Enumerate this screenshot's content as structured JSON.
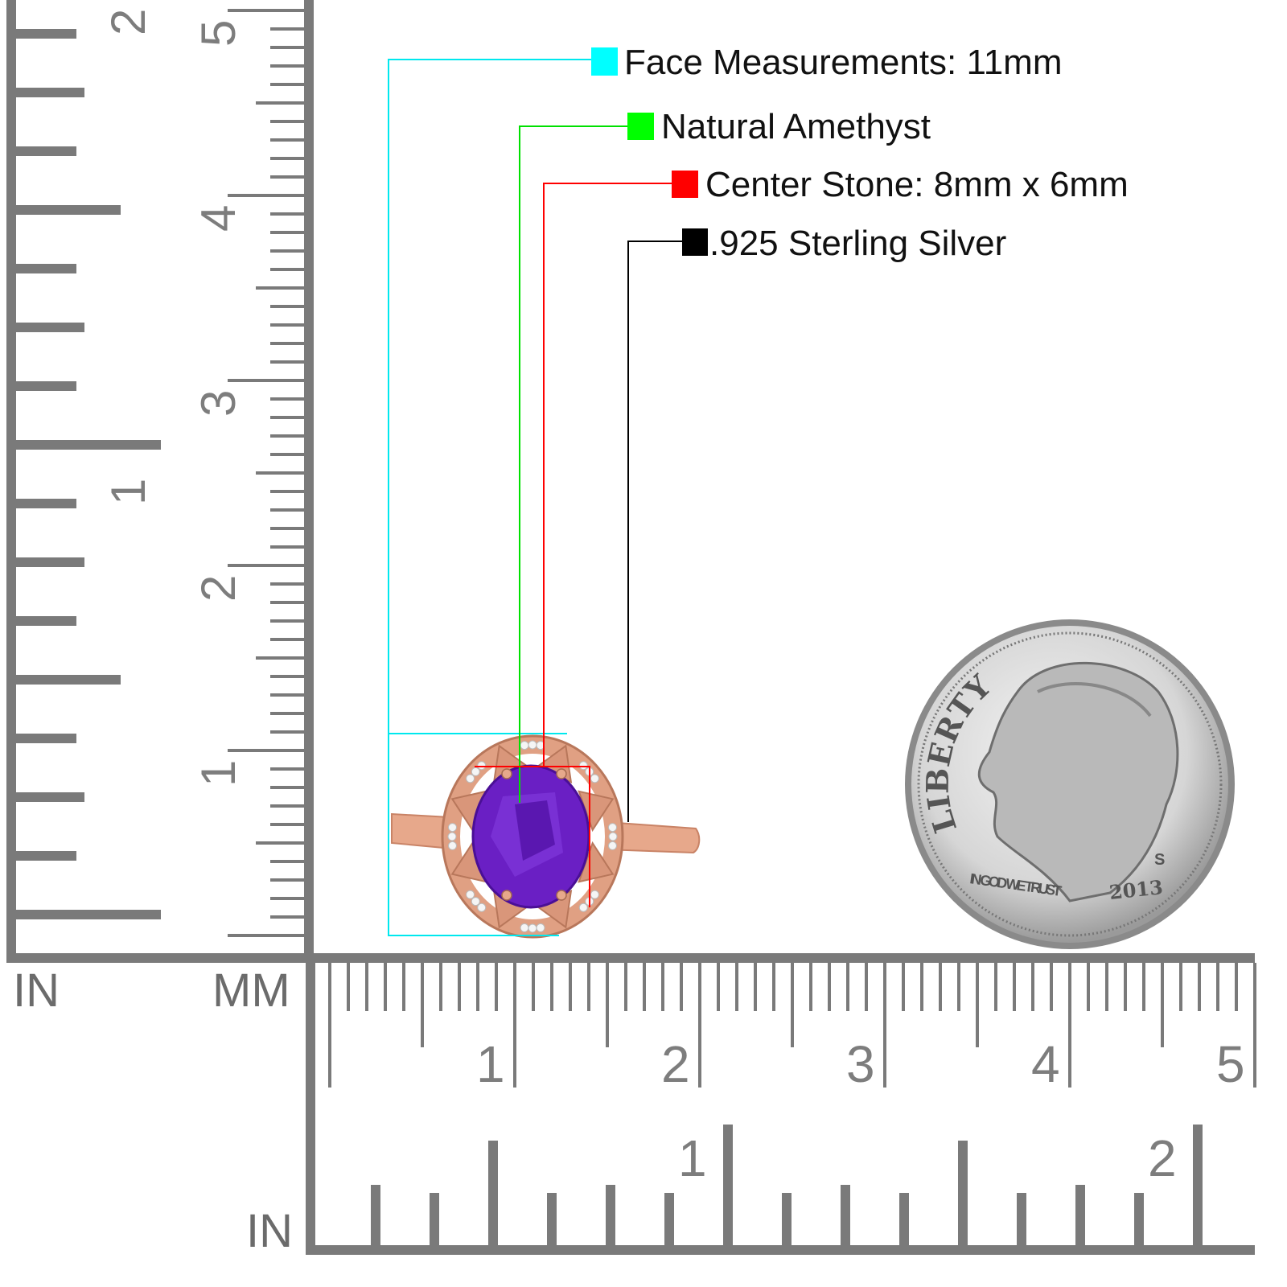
{
  "legend": [
    {
      "label": "Face Measurements: 11mm",
      "color": "#00ffff"
    },
    {
      "label": "Natural Amethyst",
      "color": "#00ff00"
    },
    {
      "label": "Center Stone: 8mm x 6mm",
      "color": "#ff0000"
    },
    {
      "label": ".925 Sterling Silver",
      "color": "#000000"
    }
  ],
  "rulers": {
    "left_in_label": "IN",
    "left_mm_label": "MM",
    "bottom_in_label": "IN",
    "vertical_mm_numbers": [
      "1",
      "2",
      "3",
      "4",
      "5"
    ],
    "vertical_in_numbers": [
      "1",
      "2"
    ],
    "horizontal_mm_numbers": [
      "1",
      "2",
      "3",
      "4",
      "5"
    ],
    "horizontal_in_numbers": [
      "1",
      "2"
    ],
    "color": "#7a7a7a"
  },
  "ring": {
    "metal_color": "#e7a88b",
    "stone_color": "#6a1fc4"
  },
  "coin": {
    "text_top": "LIBERTY",
    "motto": "IN GOD WE TRUST",
    "year": "2013",
    "mint": "S"
  }
}
